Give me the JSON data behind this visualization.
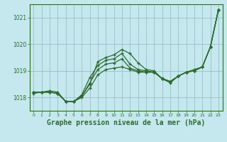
{
  "title": "Graphe pression niveau de la mer (hPa)",
  "bg_color": "#c5e8ee",
  "grid_color": "#9bbfc8",
  "line_color": "#2d6b2d",
  "xlim": [
    -0.5,
    23.5
  ],
  "ylim": [
    1017.5,
    1021.5
  ],
  "xticks": [
    0,
    1,
    2,
    3,
    4,
    5,
    6,
    7,
    8,
    9,
    10,
    11,
    12,
    13,
    14,
    15,
    16,
    17,
    18,
    19,
    20,
    21,
    22,
    23
  ],
  "yticks": [
    1018,
    1019,
    1020,
    1021
  ],
  "lines": [
    [
      1018.2,
      1018.2,
      1018.2,
      1018.15,
      1017.85,
      1017.85,
      1018.0,
      1018.35,
      1018.85,
      1019.05,
      1019.1,
      1019.15,
      1019.05,
      1018.95,
      1018.95,
      1018.95,
      1018.7,
      1018.55,
      1018.8,
      1018.95,
      1019.0,
      1019.15,
      1019.9,
      1021.3
    ],
    [
      1018.2,
      1018.2,
      1018.2,
      1018.15,
      1017.85,
      1017.85,
      1018.05,
      1018.55,
      1019.05,
      1019.25,
      1019.3,
      1019.45,
      1019.1,
      1019.0,
      1018.95,
      1018.95,
      1018.7,
      1018.6,
      1018.8,
      1018.95,
      1019.0,
      1019.15,
      1019.9,
      1021.3
    ],
    [
      1018.2,
      1018.2,
      1018.25,
      1018.2,
      1017.85,
      1017.85,
      1018.1,
      1018.75,
      1019.2,
      1019.4,
      1019.45,
      1019.65,
      1019.25,
      1019.05,
      1019.0,
      1018.95,
      1018.72,
      1018.6,
      1018.8,
      1018.95,
      1019.05,
      1019.15,
      1019.9,
      1021.3
    ],
    [
      1018.15,
      1018.2,
      1018.2,
      1018.15,
      1017.85,
      1017.85,
      1018.05,
      1018.5,
      1019.35,
      1019.5,
      1019.6,
      1019.8,
      1019.65,
      1019.3,
      1019.05,
      1019.0,
      1018.7,
      1018.6,
      1018.8,
      1018.95,
      1019.0,
      1019.15,
      1019.9,
      1021.3
    ]
  ],
  "title_fontsize": 7
}
